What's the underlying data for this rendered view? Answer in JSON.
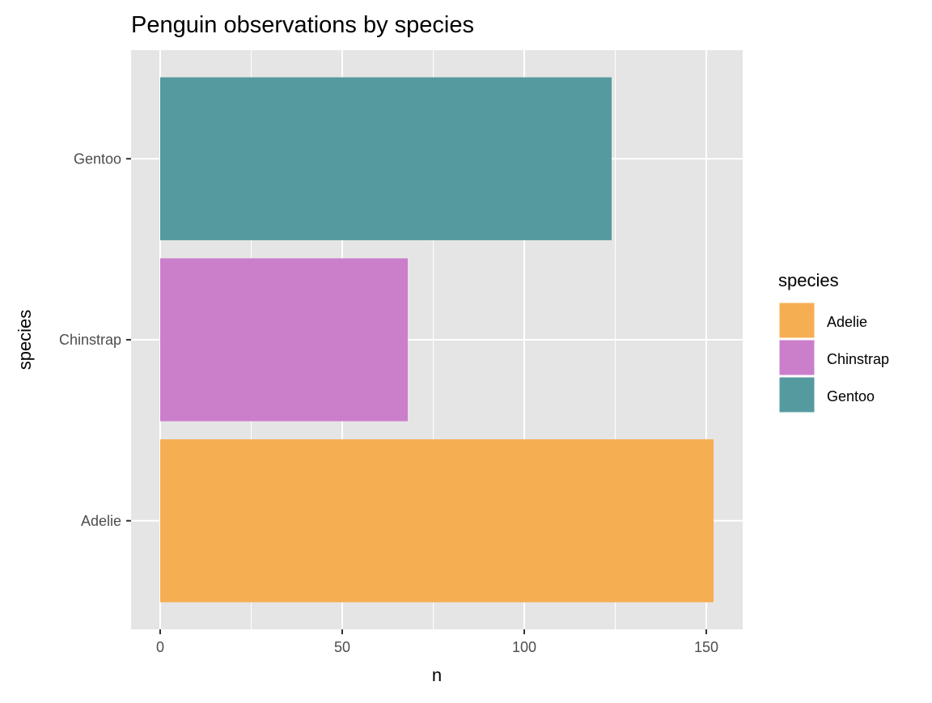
{
  "chart_data": {
    "type": "bar",
    "orientation": "horizontal",
    "title": "Penguin observations by species",
    "xlabel": "n",
    "ylabel": "species",
    "categories": [
      "Adelie",
      "Chinstrap",
      "Gentoo"
    ],
    "values": [
      152,
      68,
      124
    ],
    "xlim": [
      -8,
      160
    ],
    "xticks": [
      0,
      50,
      100,
      150
    ],
    "xtick_labels": [
      "0",
      "50",
      "100",
      "150"
    ],
    "grid": true,
    "legend": {
      "title": "species",
      "placement": "right",
      "entries": [
        "Adelie",
        "Chinstrap",
        "Gentoo"
      ]
    },
    "colors": {
      "Adelie": "#F6AE52",
      "Chinstrap": "#CB7FCB",
      "Gentoo": "#559A9E",
      "panel": "#E5E5E5",
      "grid": "#FFFFFF"
    }
  }
}
